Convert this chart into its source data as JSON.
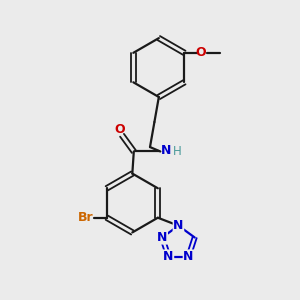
{
  "bg_color": "#ebebeb",
  "bond_color": "#1a1a1a",
  "O_color": "#cc0000",
  "N_color": "#0000cc",
  "Br_color": "#cc6600",
  "H_color": "#4a9a9a",
  "figsize": [
    3.0,
    3.0
  ],
  "dpi": 100,
  "xlim": [
    0,
    10
  ],
  "ylim": [
    0,
    10
  ]
}
